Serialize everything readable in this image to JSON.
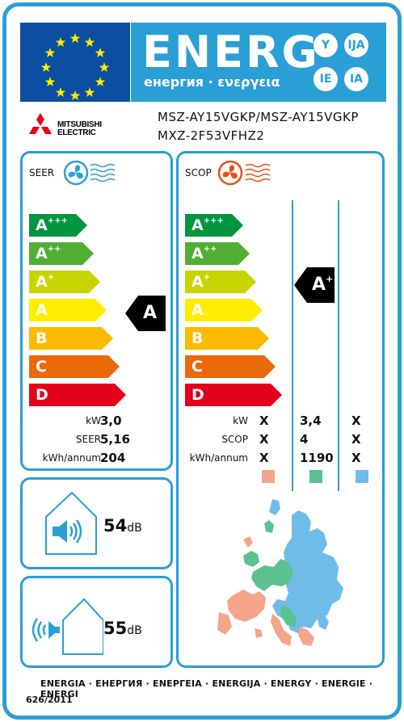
{
  "header": {
    "energy_word": "ENERG",
    "energy_sub": "енергия · ενεργεια",
    "suffixes": [
      "Y",
      "IJA",
      "IE",
      "IA"
    ]
  },
  "brand": {
    "name_line1": "MITSUBISHI",
    "name_line2": "ELECTRIC"
  },
  "models": {
    "line1": "MSZ-AY15VGKP/MSZ-AY15VGKP",
    "line2": "MXZ-2F53VFHZ2"
  },
  "scale": {
    "classes": [
      {
        "base": "A",
        "sup": "+++",
        "color": "#009640"
      },
      {
        "base": "A",
        "sup": "++",
        "color": "#52ae32"
      },
      {
        "base": "A",
        "sup": "+",
        "color": "#c8d400"
      },
      {
        "base": "A",
        "sup": "",
        "color": "#ffed00"
      },
      {
        "base": "B",
        "sup": "",
        "color": "#fbba00"
      },
      {
        "base": "C",
        "sup": "",
        "color": "#eb6909"
      },
      {
        "base": "D",
        "sup": "",
        "color": "#e2001a"
      }
    ]
  },
  "seer": {
    "title": "SEER",
    "rating_base": "A",
    "rating_sup": "",
    "rows": [
      {
        "label": "kW",
        "value": "3,0"
      },
      {
        "label": "SEER",
        "value": "5,16"
      },
      {
        "label": "kWh/annum",
        "value": "204"
      }
    ]
  },
  "scop": {
    "title": "SCOP",
    "rating_base": "A",
    "rating_sup": "+",
    "rows": [
      {
        "label": "kW",
        "values": [
          "X",
          "3,4",
          "X"
        ]
      },
      {
        "label": "SCOP",
        "values": [
          "X",
          "4",
          "X"
        ]
      },
      {
        "label": "kWh/annum",
        "values": [
          "X",
          "1190",
          "X"
        ]
      }
    ],
    "zone_colors": [
      "#f4a58a",
      "#5cc190",
      "#6fbce8"
    ]
  },
  "noise": {
    "indoor_value": "54",
    "indoor_unit": "dB",
    "outdoor_value": "55",
    "outdoor_unit": "dB"
  },
  "footer": {
    "languages": "ENERGIA · ЕНЕРГИЯ · ΕΝΕΡΓΕΙΑ · ENERGIJA · ENERGY · ENERGIE · ENERGI",
    "regulation": "626/2011"
  },
  "colors": {
    "accent": "#2a9fd6",
    "eu_blue": "#0b4ea2",
    "star": "#ffed00"
  }
}
